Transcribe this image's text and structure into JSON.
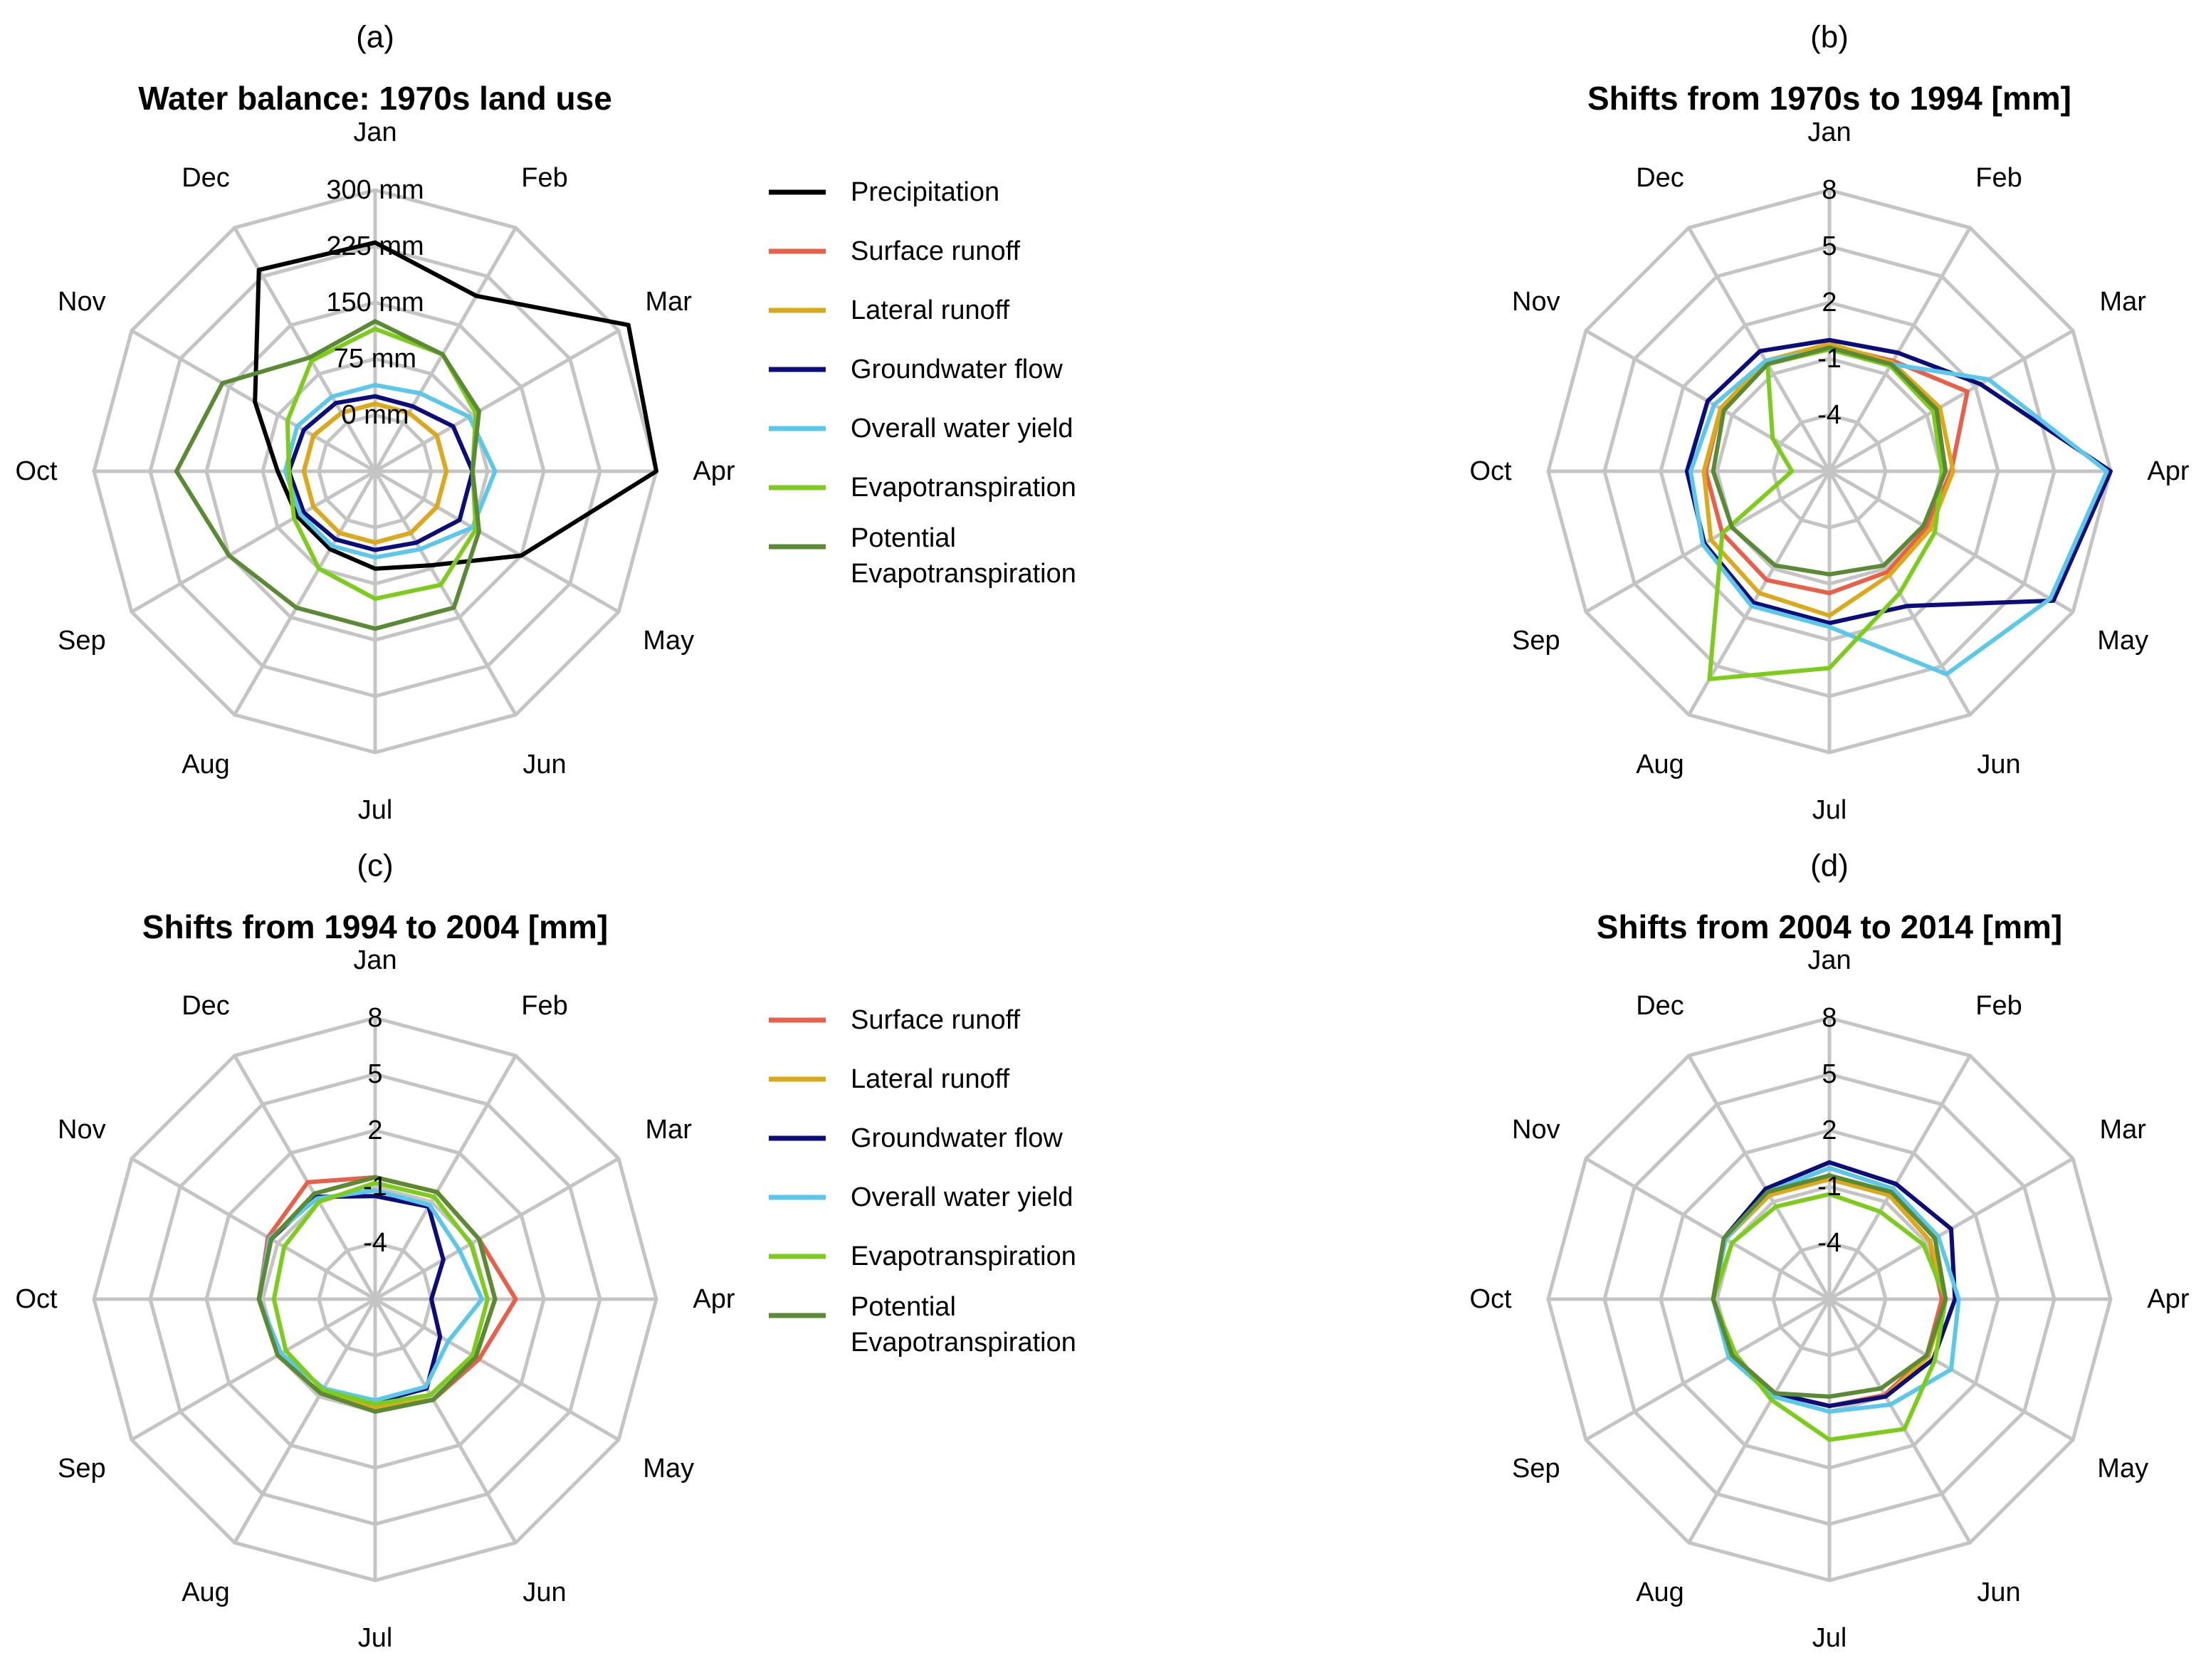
{
  "months": [
    "Jan",
    "Feb",
    "Mar",
    "Apr",
    "May",
    "Jun",
    "Jul",
    "Aug",
    "Sep",
    "Oct",
    "Nov",
    "Dec"
  ],
  "colors": {
    "Precipitation": "#000000",
    "Surface runoff": "#e8604a",
    "Lateral runoff": "#dba91a",
    "Groundwater flow": "#0d0d7a",
    "Overall water yield": "#5bc8ea",
    "Evapotranspiration": "#7dcc1c",
    "Potential Evapotranspiration": "#5b8a34"
  },
  "legends": [
    {
      "items": [
        {
          "key": "Precipitation",
          "label": "Precipitation"
        },
        {
          "key": "Surface runoff",
          "label": "Surface runoff"
        },
        {
          "key": "Lateral runoff",
          "label": "Lateral runoff"
        },
        {
          "key": "Groundwater flow",
          "label": "Groundwater flow"
        },
        {
          "key": "Overall water yield",
          "label": "Overall water yield"
        },
        {
          "key": "Evapotranspiration",
          "label": "Evapotranspiration"
        },
        {
          "key": "Potential Evapotranspiration",
          "label": "Potential",
          "label2": "Evapotranspiration"
        }
      ]
    },
    {
      "items": [
        {
          "key": "Surface runoff",
          "label": "Surface runoff"
        },
        {
          "key": "Lateral runoff",
          "label": "Lateral runoff"
        },
        {
          "key": "Groundwater flow",
          "label": "Groundwater flow"
        },
        {
          "key": "Overall water yield",
          "label": "Overall water yield"
        },
        {
          "key": "Evapotranspiration",
          "label": "Evapotranspiration"
        },
        {
          "key": "Potential Evapotranspiration",
          "label": "Potential",
          "label2": "Evapotranspiration"
        }
      ]
    }
  ],
  "chart_data": [
    {
      "type": "radar",
      "panel": "(a)",
      "title": "Water balance: 1970s land use",
      "rmin": -75,
      "rmax": 300,
      "ticks": [
        0,
        75,
        150,
        225,
        300
      ],
      "tick_labels": [
        "0 mm",
        "75 mm",
        "150 mm",
        "225 mm",
        "300 mm"
      ],
      "series": [
        {
          "name": "Precipitation",
          "values": [
            230,
            195,
            315,
            300,
            150,
            70,
            55,
            45,
            45,
            55,
            110,
            235
          ]
        },
        {
          "name": "Surface runoff",
          "values": [
            15,
            15,
            20,
            20,
            20,
            20,
            20,
            20,
            20,
            20,
            20,
            15
          ]
        },
        {
          "name": "Lateral runoff",
          "values": [
            15,
            15,
            20,
            20,
            20,
            20,
            20,
            20,
            20,
            20,
            20,
            15
          ]
        },
        {
          "name": "Groundwater flow",
          "values": [
            25,
            25,
            45,
            55,
            55,
            35,
            30,
            30,
            35,
            40,
            35,
            30
          ]
        },
        {
          "name": "Overall water yield",
          "values": [
            40,
            45,
            70,
            85,
            75,
            45,
            40,
            40,
            40,
            45,
            45,
            40
          ]
        },
        {
          "name": "Evapotranspiration",
          "values": [
            115,
            105,
            80,
            55,
            80,
            100,
            95,
            75,
            50,
            40,
            60,
            95
          ]
        },
        {
          "name": "Potential Evapotranspiration",
          "values": [
            125,
            105,
            85,
            55,
            85,
            135,
            135,
            135,
            150,
            190,
            160,
            100
          ]
        }
      ]
    },
    {
      "type": "radar",
      "panel": "(b)",
      "title": "Shifts from 1970s to 1994 [mm]",
      "rmin": -7,
      "rmax": 8,
      "ticks": [
        -4,
        -1,
        2,
        5,
        8
      ],
      "tick_labels": [
        "-4",
        "-1",
        "2",
        "5",
        "8"
      ],
      "series": [
        {
          "name": "Surface runoff",
          "values": [
            -0.3,
            -0.2,
            1.5,
            -0.5,
            -1.0,
            -0.8,
            -0.5,
            -0.3,
            -0.4,
            -0.4,
            -0.3,
            -0.2
          ]
        },
        {
          "name": "Lateral runoff",
          "values": [
            -0.2,
            -0.3,
            -0.2,
            -0.4,
            -0.8,
            -0.6,
            0.7,
            0.5,
            0.3,
            -0.3,
            -0.3,
            -0.2
          ]
        },
        {
          "name": "Groundwater flow",
          "values": [
            0,
            0.3,
            2.3,
            8.0,
            6.8,
            1.3,
            1.1,
            1.1,
            0.7,
            0.6,
            0.5,
            0.4
          ]
        },
        {
          "name": "Overall water yield",
          "values": [
            -0.5,
            -0.4,
            2.8,
            7.8,
            6.6,
            5.5,
            1.3,
            1.3,
            0.8,
            0.4,
            0.1,
            -0.2
          ]
        },
        {
          "name": "Evapotranspiration",
          "values": [
            -0.5,
            -0.5,
            -0.6,
            -1.0,
            -0.5,
            0.5,
            3.5,
            5.8,
            -0.4,
            -5.0,
            -3.5,
            -0.4
          ]
        },
        {
          "name": "Potential Evapotranspiration",
          "values": [
            -0.4,
            -0.4,
            -0.4,
            -0.8,
            -1.2,
            -1.2,
            -1.5,
            -1.2,
            -1.0,
            -0.8,
            -0.5,
            -0.4
          ]
        }
      ]
    },
    {
      "type": "radar",
      "panel": "(c)",
      "title": "Shifts from 1994 to 2004 [mm]",
      "rmin": -7,
      "rmax": 8,
      "ticks": [
        -4,
        -1,
        2,
        5,
        8
      ],
      "tick_labels": [
        "-4",
        "-1",
        "2",
        "5",
        "8"
      ],
      "series": [
        {
          "name": "Surface runoff",
          "values": [
            -0.5,
            -0.4,
            -0.6,
            0.5,
            -0.6,
            -0.8,
            -1.2,
            -1.2,
            -1.0,
            -0.8,
            -0.4,
            0.2
          ]
        },
        {
          "name": "Lateral runoff",
          "values": [
            -0.5,
            -0.4,
            -0.6,
            -0.6,
            -0.8,
            -0.8,
            -1.2,
            -1.2,
            -1.0,
            -0.8,
            -0.6,
            -0.5
          ]
        },
        {
          "name": "Groundwater flow",
          "values": [
            -1.5,
            -1.3,
            -2.8,
            -4.0,
            -3.0,
            -1.5,
            -1.5,
            -1.5,
            -1.2,
            -0.8,
            -0.6,
            -0.7
          ]
        },
        {
          "name": "Overall water yield",
          "values": [
            -1.2,
            -1.2,
            -1.8,
            -1.3,
            -2.5,
            -1.6,
            -1.6,
            -1.5,
            -1.2,
            -0.8,
            -0.5,
            -0.8
          ]
        },
        {
          "name": "Evapotranspiration",
          "values": [
            -0.8,
            -0.7,
            -1.1,
            -1.0,
            -1.0,
            -1.1,
            -1.4,
            -1.4,
            -1.5,
            -1.6,
            -1.4,
            -1.0
          ]
        },
        {
          "name": "Potential Evapotranspiration",
          "values": [
            -0.5,
            -0.4,
            -0.6,
            -0.6,
            -0.8,
            -0.8,
            -1.0,
            -1.2,
            -1.0,
            -0.8,
            -0.6,
            -0.5
          ]
        }
      ]
    },
    {
      "type": "radar",
      "panel": "(d)",
      "title": "Shifts from 2004 to 2014 [mm]",
      "rmin": -7,
      "rmax": 8,
      "ticks": [
        -4,
        -1,
        2,
        5,
        8
      ],
      "tick_labels": [
        "-4",
        "-1",
        "2",
        "5",
        "8"
      ],
      "series": [
        {
          "name": "Surface runoff",
          "values": [
            -0.6,
            -0.6,
            -0.8,
            -1.0,
            -1.0,
            -1.1,
            -1.3,
            -1.2,
            -1.0,
            -0.8,
            -0.6,
            -0.6
          ]
        },
        {
          "name": "Lateral runoff",
          "values": [
            -0.6,
            -0.6,
            -0.8,
            -0.8,
            -0.9,
            -1.0,
            -1.3,
            -1.2,
            -1.0,
            -0.8,
            -0.6,
            -0.6
          ]
        },
        {
          "name": "Groundwater flow",
          "values": [
            0.3,
            0.1,
            0.5,
            -0.3,
            -0.6,
            -1.0,
            -1.3,
            -1.2,
            -1.0,
            -0.8,
            -0.5,
            -0.2
          ]
        },
        {
          "name": "Overall water yield",
          "values": [
            0.0,
            -0.2,
            -0.3,
            -0.1,
            0.5,
            -0.5,
            -1.0,
            -1.0,
            -0.8,
            -0.8,
            -0.6,
            -0.4
          ]
        },
        {
          "name": "Evapotranspiration",
          "values": [
            -1.4,
            -1.6,
            -1.2,
            -0.8,
            -0.5,
            1.0,
            0.5,
            -0.8,
            -1.2,
            -0.8,
            -1.0,
            -1.3
          ]
        },
        {
          "name": "Potential Evapotranspiration",
          "values": [
            -0.4,
            -0.4,
            -0.5,
            -0.8,
            -1.0,
            -1.5,
            -1.8,
            -1.2,
            -1.0,
            -0.8,
            -0.5,
            -0.4
          ]
        }
      ]
    }
  ]
}
